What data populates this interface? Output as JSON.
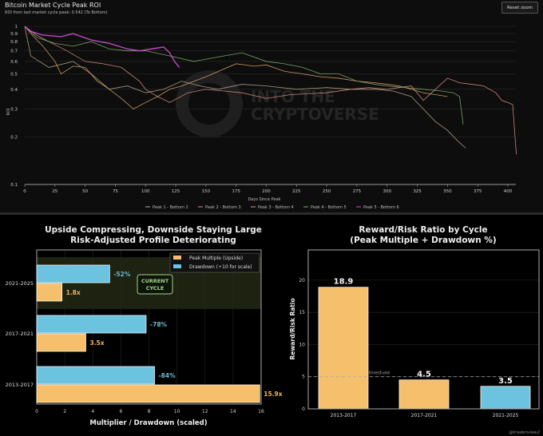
{
  "chart_data": [
    {
      "type": "line",
      "title": "Bitcoin Market Cycle Peak ROI",
      "subtitle": "ROI from last market cycle peak: 0.542 (To Bottom)",
      "reset_zoom_label": "Reset zoom",
      "xlabel": "Days Since Peak",
      "ylabel": "ROI",
      "yscale": "log",
      "xlim": [
        0,
        420
      ],
      "ylim": [
        0.1,
        1
      ],
      "x_ticks": [
        "0",
        "25",
        "50",
        "75",
        "100",
        "125",
        "150",
        "175",
        "200",
        "225",
        "250",
        "275",
        "300",
        "325",
        "350",
        "375",
        "400"
      ],
      "y_ticks": [
        "1",
        "0.9",
        "0.8",
        "0.7",
        "0.6",
        "0.5",
        "0.4",
        "0.3",
        "0.2",
        "0.1"
      ],
      "watermark": "INTO THE CRYPTOVERSE",
      "legend_position": "bottom",
      "series": [
        {
          "name": "Peak 1 - Bottom 2",
          "color": "#b9a98a",
          "x": [
            0,
            5,
            20,
            40,
            55,
            70,
            85,
            100,
            115,
            130,
            145,
            160,
            180,
            200,
            225,
            250,
            270,
            290,
            305,
            320,
            330,
            340,
            350,
            358,
            365
          ],
          "y": [
            1,
            0.65,
            0.55,
            0.6,
            0.5,
            0.4,
            0.42,
            0.38,
            0.4,
            0.45,
            0.42,
            0.4,
            0.43,
            0.42,
            0.4,
            0.41,
            0.4,
            0.4,
            0.39,
            0.36,
            0.3,
            0.25,
            0.22,
            0.19,
            0.17
          ]
        },
        {
          "name": "Peak 2 - Bottom 3",
          "color": "#d9908a",
          "x": [
            0,
            10,
            20,
            35,
            50,
            65,
            80,
            95,
            100,
            110,
            120,
            135,
            150,
            165,
            180,
            200,
            220,
            250,
            270,
            285,
            300,
            320,
            330,
            340,
            350,
            360,
            370,
            380,
            390,
            395,
            400,
            404,
            407
          ],
          "y": [
            1,
            0.88,
            0.8,
            0.7,
            0.6,
            0.58,
            0.55,
            0.45,
            0.4,
            0.36,
            0.33,
            0.38,
            0.4,
            0.39,
            0.38,
            0.35,
            0.37,
            0.38,
            0.4,
            0.41,
            0.4,
            0.42,
            0.34,
            0.4,
            0.47,
            0.44,
            0.43,
            0.42,
            0.38,
            0.34,
            0.33,
            0.32,
            0.155
          ]
        },
        {
          "name": "Peak 3 - Bottom 4",
          "color": "#d8a46a",
          "x": [
            0,
            8,
            15,
            25,
            30,
            40,
            50,
            60,
            70,
            80,
            90,
            100,
            110,
            120,
            130,
            150,
            175,
            190,
            200,
            215,
            230,
            245,
            260,
            275,
            290,
            300,
            310,
            320,
            330,
            340,
            350
          ],
          "y": [
            1,
            0.85,
            0.75,
            0.6,
            0.5,
            0.56,
            0.55,
            0.45,
            0.4,
            0.35,
            0.3,
            0.33,
            0.36,
            0.4,
            0.42,
            0.48,
            0.58,
            0.56,
            0.57,
            0.52,
            0.5,
            0.48,
            0.47,
            0.45,
            0.44,
            0.43,
            0.42,
            0.4,
            0.38,
            0.37,
            0.36
          ]
        },
        {
          "name": "Peak 4 - Bottom 5",
          "color": "#7fb36a",
          "x": [
            0,
            10,
            25,
            40,
            55,
            70,
            85,
            100,
            120,
            140,
            150,
            165,
            180,
            200,
            215,
            230,
            245,
            260,
            275,
            290,
            300,
            315,
            330,
            345,
            355,
            360,
            363
          ],
          "y": [
            1,
            0.85,
            0.78,
            0.75,
            0.8,
            0.72,
            0.7,
            0.7,
            0.65,
            0.6,
            0.62,
            0.65,
            0.68,
            0.6,
            0.58,
            0.55,
            0.5,
            0.5,
            0.45,
            0.43,
            0.42,
            0.41,
            0.4,
            0.39,
            0.38,
            0.36,
            0.24
          ]
        },
        {
          "name": "Peak 5 - Bottom 6",
          "color": "#d14fd1",
          "x": [
            0,
            5,
            15,
            30,
            40,
            55,
            70,
            85,
            95,
            105,
            115,
            120,
            124,
            128
          ],
          "y": [
            1,
            0.93,
            0.88,
            0.86,
            0.9,
            0.82,
            0.78,
            0.72,
            0.7,
            0.72,
            0.74,
            0.68,
            0.6,
            0.55
          ]
        }
      ]
    },
    {
      "type": "bar",
      "orientation": "horizontal",
      "title_lines": [
        "Upside Compressing, Downside Staying Large",
        "Risk-Adjusted Profile Deteriorating"
      ],
      "xlabel": "Multiplier / Drawdown (scaled)",
      "xlim": [
        0,
        16
      ],
      "x_ticks": [
        "0",
        "2",
        "4",
        "6",
        "8",
        "10",
        "12",
        "14",
        "16"
      ],
      "categories": [
        "2021-2025",
        "2017-2021",
        "2013-2017"
      ],
      "series": [
        {
          "name": "Peak Multiple (Upside)",
          "color": "#f5bf6b",
          "values": [
            1.8,
            3.5,
            15.9
          ],
          "labels": [
            "1.8x",
            "3.5x",
            "15.9x"
          ]
        },
        {
          "name": "Drawdown (÷10 for scale)",
          "color": "#6cc3e0",
          "values": [
            5.2,
            7.8,
            8.4
          ],
          "labels": [
            "-52%",
            "-78%",
            "-84%"
          ]
        }
      ],
      "legend_position": "top-right",
      "annotation": [
        "CURRENT",
        "CYCLE"
      ]
    },
    {
      "type": "bar",
      "title_lines": [
        "Reward/Risk Ratio by Cycle",
        "(Peak Multiple + Drawdown %)"
      ],
      "ylabel": "Reward/Risk Ratio",
      "ylim": [
        0,
        24.7
      ],
      "y_ticks": [
        "0",
        "5",
        "10",
        "15",
        "20"
      ],
      "categories": [
        "2013-2017",
        "2017-2021",
        "2021-2025"
      ],
      "values": [
        18.9,
        4.5,
        3.5
      ],
      "labels": [
        "18.9",
        "4.5",
        "3.5"
      ],
      "colors": [
        "#f5bf6b",
        "#f5bf6b",
        "#6cc3e0"
      ],
      "threshold": {
        "value": 5,
        "label": "threshold"
      }
    }
  ],
  "credit": "@traderview2"
}
